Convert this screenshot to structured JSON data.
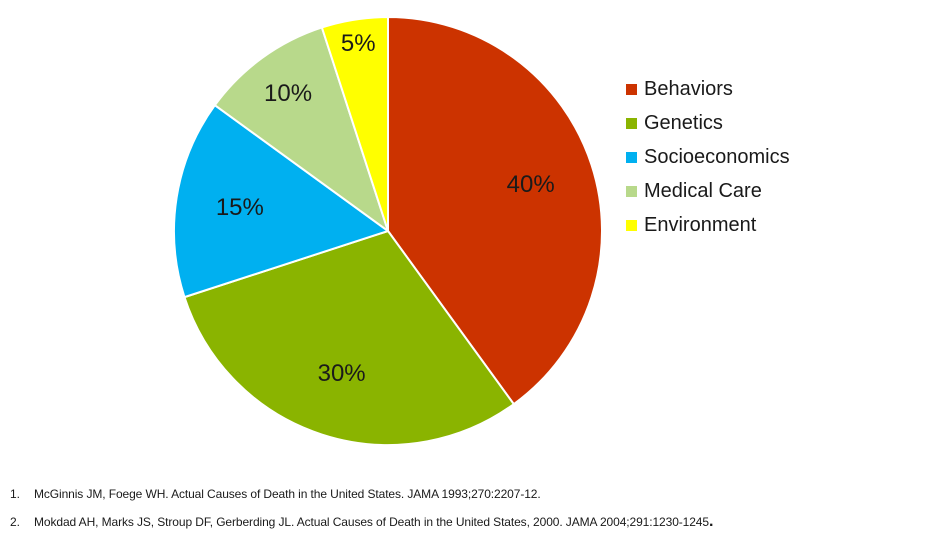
{
  "chart_data": {
    "type": "pie",
    "categories": [
      "Behaviors",
      "Genetics",
      "Socioeconomics",
      "Medical Care",
      "Environment"
    ],
    "values": [
      40,
      30,
      15,
      10,
      5
    ],
    "labels": [
      "40%",
      "30%",
      "15%",
      "10%",
      "5%"
    ],
    "colors": [
      "#cc3300",
      "#8ab400",
      "#00b0f0",
      "#b8d98b",
      "#ffff00"
    ],
    "start": "12 o'clock",
    "direction": "clockwise",
    "legend_position": "right",
    "title": ""
  },
  "legend": {
    "items": [
      {
        "label": "Behaviors",
        "color": "#cc3300"
      },
      {
        "label": "Genetics",
        "color": "#8ab400"
      },
      {
        "label": "Socioeconomics",
        "color": "#00b0f0"
      },
      {
        "label": "Medical Care",
        "color": "#b8d98b"
      },
      {
        "label": "Environment",
        "color": "#ffff00"
      }
    ]
  },
  "references": [
    {
      "num": "1.",
      "text": "McGinnis JM, Foege WH. Actual Causes of Death in the United States. JAMA 1993;270:2207-12.",
      "trailing": ""
    },
    {
      "num": "2.",
      "text": "Mokdad AH, Marks JS, Stroup DF, Gerberding JL. Actual Causes of Death in the United States, 2000. JAMA 2004;291:1230-1245",
      "trailing": "."
    }
  ]
}
